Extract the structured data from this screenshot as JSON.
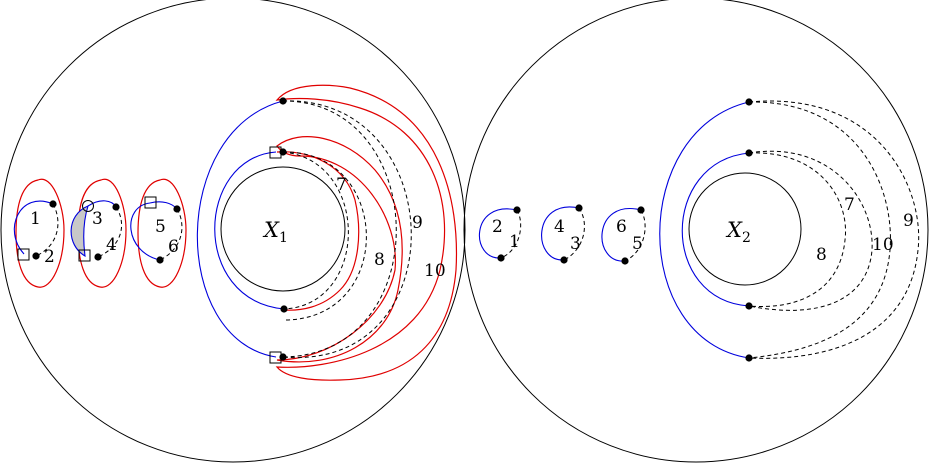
{
  "left_disk": {
    "hole_label": "X",
    "hole_subscript": "1",
    "arc_labels": [
      "1",
      "2",
      "3",
      "4",
      "5",
      "6",
      "7",
      "8",
      "9",
      "10"
    ]
  },
  "right_disk": {
    "hole_label": "X",
    "hole_subscript": "2",
    "arc_labels": [
      "2",
      "1",
      "4",
      "3",
      "6",
      "5",
      "7",
      "8",
      "10",
      "9"
    ]
  },
  "colors": {
    "solid_arc": "#0000dd",
    "dashed_arc": "#000000",
    "highlight_curve": "#e00000",
    "shaded_region": "#c8c8c8"
  }
}
